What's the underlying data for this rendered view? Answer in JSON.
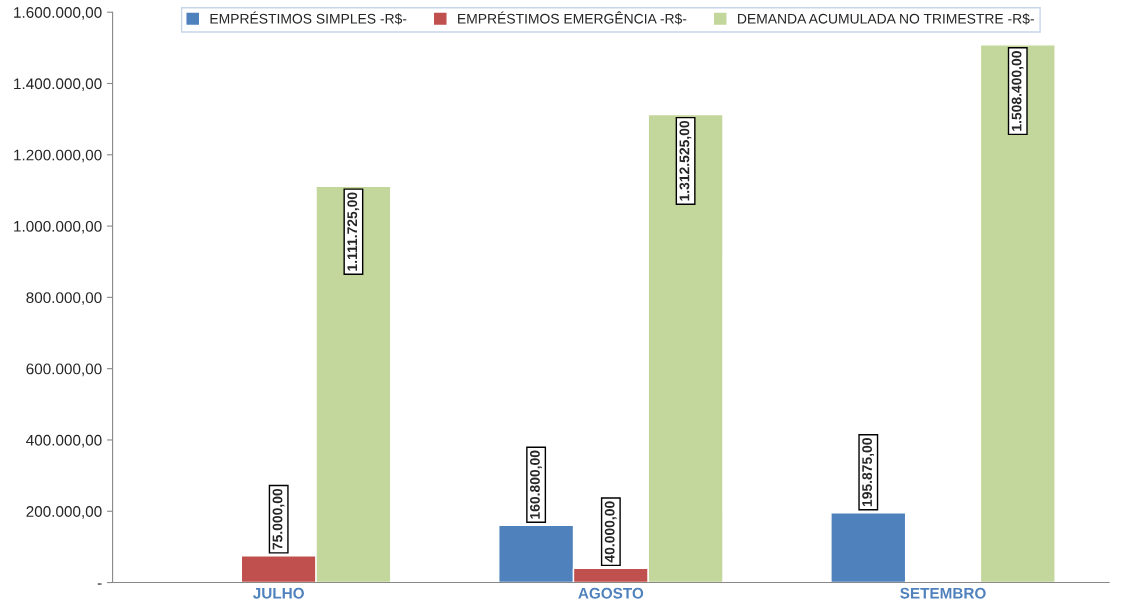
{
  "chart_data": {
    "type": "bar",
    "categories": [
      "JULHO",
      "AGOSTO",
      "SETEMBRO"
    ],
    "series": [
      {
        "name": "EMPRÉSTIMOS SIMPLES -R$-",
        "color": "#4f81bd",
        "values": [
          null,
          160800,
          195875
        ],
        "value_labels": [
          null,
          "160.800,00",
          "195.875,00"
        ]
      },
      {
        "name": "EMPRÉSTIMOS EMERGÊNCIA -R$-",
        "color": "#c0504d",
        "values": [
          75000,
          40000,
          null
        ],
        "value_labels": [
          "75.000,00",
          "40.000,00",
          null
        ]
      },
      {
        "name": "DEMANDA ACUMULADA NO TRIMESTRE -R$-",
        "color": "#c3d69b",
        "values": [
          1111725,
          1312525,
          1508400
        ],
        "value_labels": [
          "1.111.725,00",
          "1.312.525,00",
          "1.508.400,00"
        ]
      }
    ],
    "ylim": [
      0,
      1600000
    ],
    "yticks": [
      {
        "value": 0,
        "label": "-"
      },
      {
        "value": 200000,
        "label": "200.000,00"
      },
      {
        "value": 400000,
        "label": "400.000,00"
      },
      {
        "value": 600000,
        "label": "600.000,00"
      },
      {
        "value": 800000,
        "label": "800.000,00"
      },
      {
        "value": 1000000,
        "label": "1.000.000,00"
      },
      {
        "value": 1200000,
        "label": "1.200.000,00"
      },
      {
        "value": 1400000,
        "label": "1.400.000,00"
      },
      {
        "value": 1600000,
        "label": "1.600.000,00"
      }
    ],
    "grid": false,
    "legend": "top"
  }
}
